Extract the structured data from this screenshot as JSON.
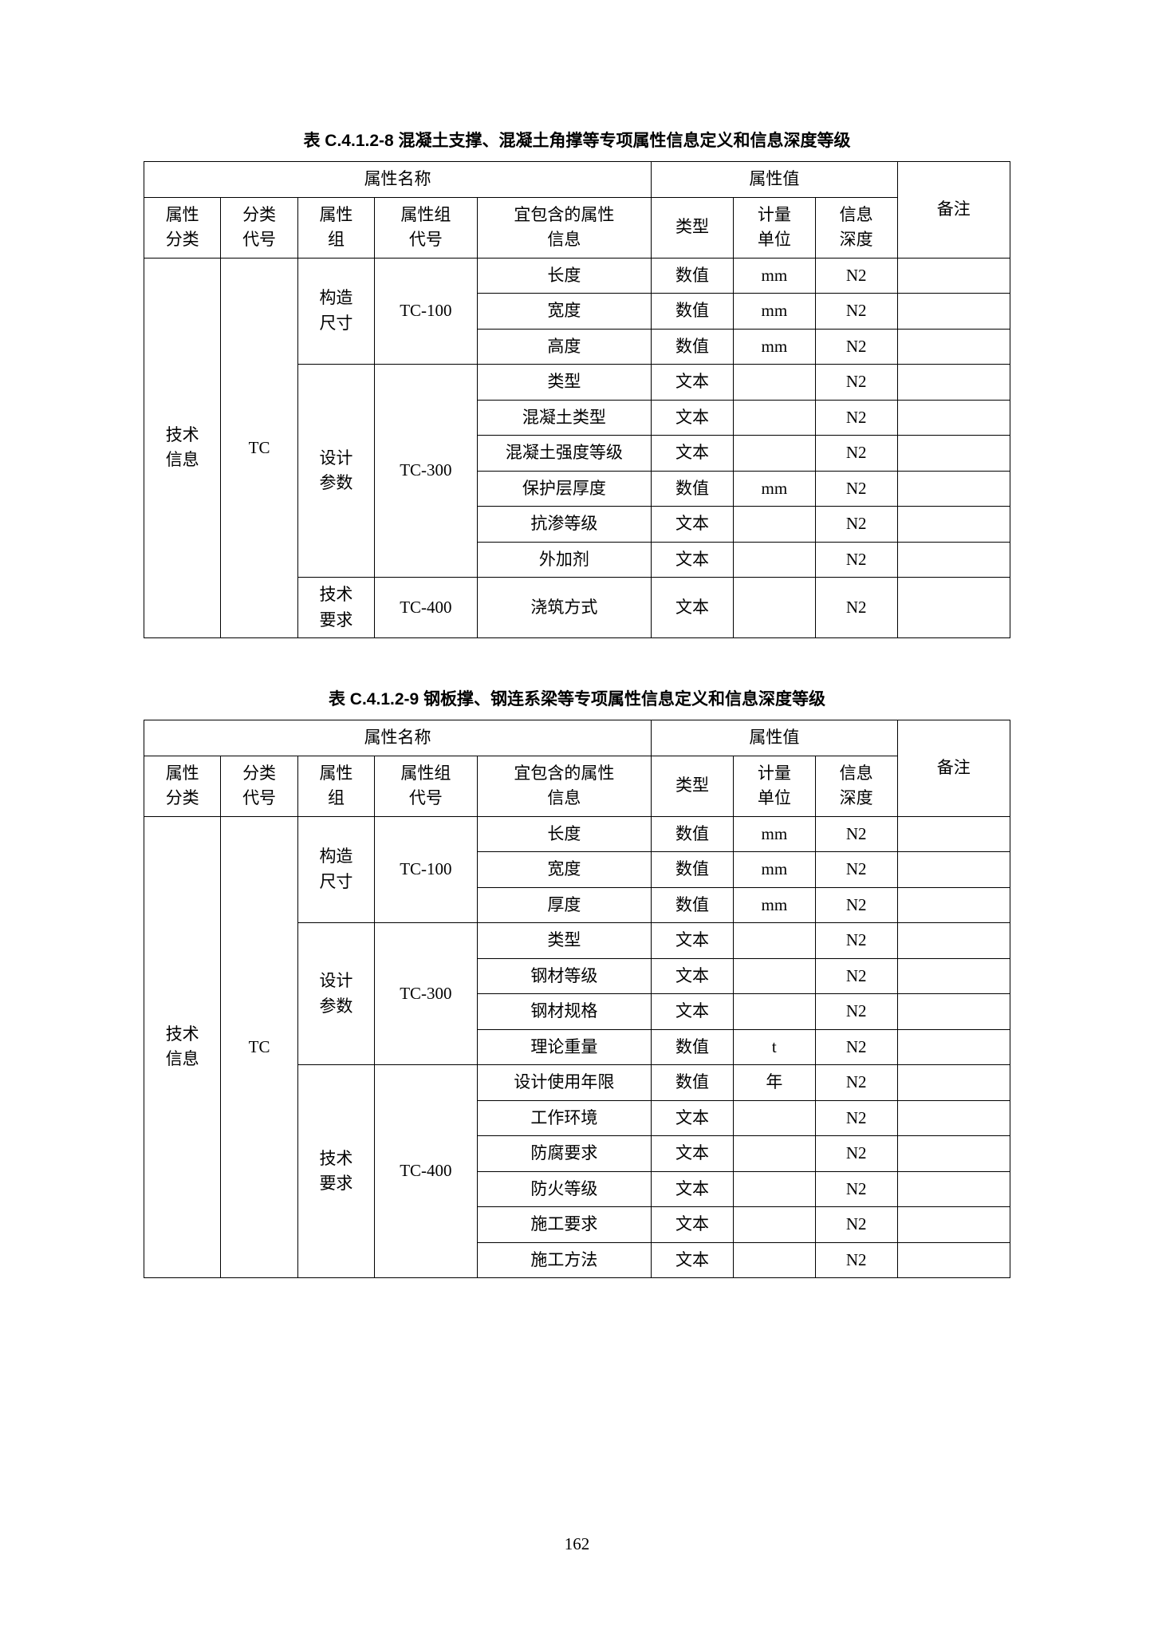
{
  "pageNumber": "162",
  "table1": {
    "title": "表 C.4.1.2-8   混凝土支撑、混凝土角撑等专项属性信息定义和信息深度等级",
    "header": {
      "attrNameGroup": "属性名称",
      "attrValueGroup": "属性值",
      "attrClass": "属性\n分类",
      "classCode": "分类\n代号",
      "attrGroup": "属性\n组",
      "groupCode": "属性组\n代号",
      "attrInfo": "宜包含的属性\n信息",
      "type": "类型",
      "unit": "计量\n单位",
      "depth": "信息\n深度",
      "remark": "备注"
    },
    "body": {
      "attrClass": "技术\n信息",
      "classCode": "TC",
      "groups": [
        {
          "name": "构造\n尺寸",
          "code": "TC-100",
          "rows": [
            {
              "info": "长度",
              "type": "数值",
              "unit": "mm",
              "depth": "N2",
              "remark": ""
            },
            {
              "info": "宽度",
              "type": "数值",
              "unit": "mm",
              "depth": "N2",
              "remark": ""
            },
            {
              "info": "高度",
              "type": "数值",
              "unit": "mm",
              "depth": "N2",
              "remark": ""
            }
          ]
        },
        {
          "name": "设计\n参数",
          "code": "TC-300",
          "rows": [
            {
              "info": "类型",
              "type": "文本",
              "unit": "",
              "depth": "N2",
              "remark": ""
            },
            {
              "info": "混凝土类型",
              "type": "文本",
              "unit": "",
              "depth": "N2",
              "remark": ""
            },
            {
              "info": "混凝土强度等级",
              "type": "文本",
              "unit": "",
              "depth": "N2",
              "remark": ""
            },
            {
              "info": "保护层厚度",
              "type": "数值",
              "unit": "mm",
              "depth": "N2",
              "remark": ""
            },
            {
              "info": "抗渗等级",
              "type": "文本",
              "unit": "",
              "depth": "N2",
              "remark": ""
            },
            {
              "info": "外加剂",
              "type": "文本",
              "unit": "",
              "depth": "N2",
              "remark": ""
            }
          ]
        },
        {
          "name": "技术\n要求",
          "code": "TC-400",
          "rows": [
            {
              "info": "浇筑方式",
              "type": "文本",
              "unit": "",
              "depth": "N2",
              "remark": ""
            }
          ]
        }
      ]
    }
  },
  "table2": {
    "title": "表 C.4.1.2-9   钢板撑、钢连系梁等专项属性信息定义和信息深度等级",
    "header": {
      "attrNameGroup": "属性名称",
      "attrValueGroup": "属性值",
      "attrClass": "属性\n分类",
      "classCode": "分类\n代号",
      "attrGroup": "属性\n组",
      "groupCode": "属性组\n代号",
      "attrInfo": "宜包含的属性\n信息",
      "type": "类型",
      "unit": "计量\n单位",
      "depth": "信息\n深度",
      "remark": "备注"
    },
    "body": {
      "attrClass": "技术\n信息",
      "classCode": "TC",
      "groups": [
        {
          "name": "构造\n尺寸",
          "code": "TC-100",
          "rows": [
            {
              "info": "长度",
              "type": "数值",
              "unit": "mm",
              "depth": "N2",
              "remark": ""
            },
            {
              "info": "宽度",
              "type": "数值",
              "unit": "mm",
              "depth": "N2",
              "remark": ""
            },
            {
              "info": "厚度",
              "type": "数值",
              "unit": "mm",
              "depth": "N2",
              "remark": ""
            }
          ]
        },
        {
          "name": "设计\n参数",
          "code": "TC-300",
          "rows": [
            {
              "info": "类型",
              "type": "文本",
              "unit": "",
              "depth": "N2",
              "remark": ""
            },
            {
              "info": "钢材等级",
              "type": "文本",
              "unit": "",
              "depth": "N2",
              "remark": ""
            },
            {
              "info": "钢材规格",
              "type": "文本",
              "unit": "",
              "depth": "N2",
              "remark": ""
            },
            {
              "info": "理论重量",
              "type": "数值",
              "unit": "t",
              "depth": "N2",
              "remark": ""
            }
          ]
        },
        {
          "name": "技术\n要求",
          "code": "TC-400",
          "rows": [
            {
              "info": "设计使用年限",
              "type": "数值",
              "unit": "年",
              "depth": "N2",
              "remark": ""
            },
            {
              "info": "工作环境",
              "type": "文本",
              "unit": "",
              "depth": "N2",
              "remark": ""
            },
            {
              "info": "防腐要求",
              "type": "文本",
              "unit": "",
              "depth": "N2",
              "remark": ""
            },
            {
              "info": "防火等级",
              "type": "文本",
              "unit": "",
              "depth": "N2",
              "remark": ""
            },
            {
              "info": "施工要求",
              "type": "文本",
              "unit": "",
              "depth": "N2",
              "remark": ""
            },
            {
              "info": "施工方法",
              "type": "文本",
              "unit": "",
              "depth": "N2",
              "remark": ""
            }
          ]
        }
      ]
    }
  }
}
